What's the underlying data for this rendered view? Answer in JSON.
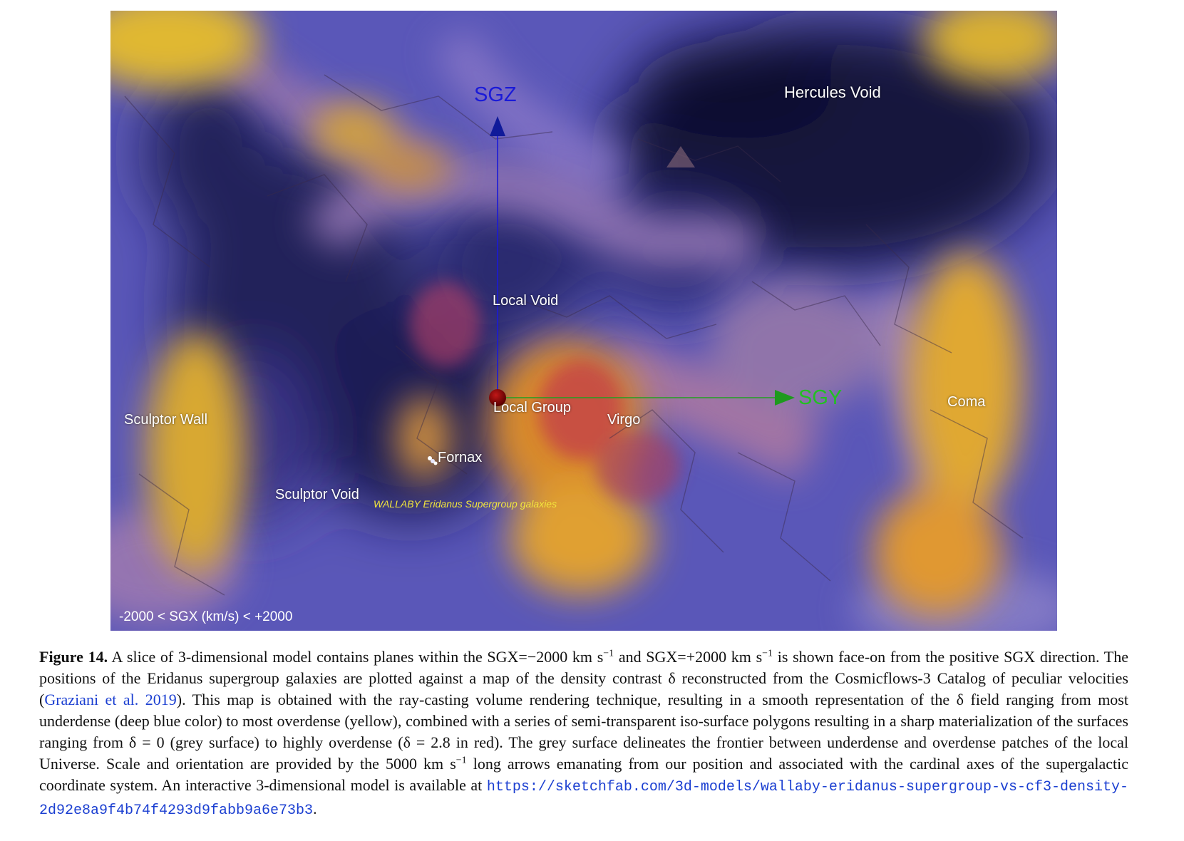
{
  "figure": {
    "labels": {
      "sgz": "SGZ",
      "sgy": "SGY",
      "hercules_void": "Hercules Void",
      "local_void": "Local Void",
      "local_group": "Local Group",
      "virgo": "Virgo",
      "coma": "Coma",
      "sculptor_wall": "Sculptor Wall",
      "fornax": "Fornax",
      "sculptor_void": "Sculptor Void",
      "wallaby": "WALLABY Eridanus Supergroup galaxies",
      "slice_range": "-2000 < SGX (km/s) < +2000"
    },
    "colors": {
      "sgz_axis": "#1a1ad8",
      "sgy_axis": "#22c022",
      "local_group_marker": "#8a0000",
      "wallaby_label": "#f3e63c",
      "underdense": "#14143c",
      "overdense": "#f0c020"
    }
  },
  "caption": {
    "label": "Figure 14.",
    "t1": " A slice of 3-dimensional model contains planes within the SGX=−2000 km s",
    "sup1": "−1",
    "t2": " and SGX=+2000 km s",
    "sup2": "−1",
    "t3": " is shown face-on from the positive SGX direction. The positions of the Eridanus supergroup galaxies are plotted against a map of the density contrast δ reconstructed from the Cosmicflows-3 Catalog of peculiar velocities (",
    "cite": "Graziani et al. 2019",
    "t4": "). This map is obtained with the ray-casting volume rendering technique, resulting in a smooth representation of the δ field ranging from most underdense (deep blue color) to most overdense (yellow), combined with a series of semi-transparent iso-surface polygons resulting in a sharp materialization of the surfaces ranging from δ = 0 (grey surface) to highly overdense (δ = 2.8 in red). The grey surface delineates the frontier between underdense and overdense patches of the local Universe. Scale and orientation are provided by the 5000 km s",
    "sup3": "−1",
    "t5": " long arrows emanating from our position and associated with the cardinal axes of the supergalactic coordinate system. An interactive 3-dimensional model is available at ",
    "url": "https://sketchfab.com/3d-models/wallaby-eridanus-supergroup-vs-cf3-density-2d92e8a9f4b74f4293d9fabb9a6e73b3",
    "t6": "."
  }
}
